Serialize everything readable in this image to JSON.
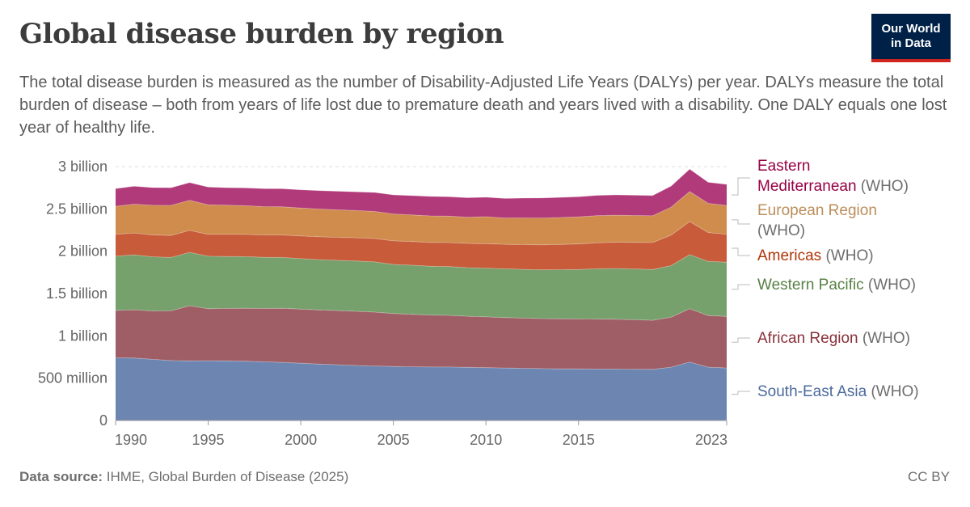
{
  "header": {
    "title": "Global disease burden by region",
    "subtitle": "The total disease burden is measured as the number of Disability-Adjusted Life Years (DALYs) per year. DALYs measure the total burden of disease – both from years of life lost due to premature death and years lived with a disability. One DALY equals one lost year of healthy life.",
    "logo_line1": "Our World",
    "logo_line2": "in Data"
  },
  "footer": {
    "source_label": "Data source:",
    "source_text": "IHME, Global Burden of Disease (2025)",
    "license": "CC BY"
  },
  "chart_data": {
    "type": "area",
    "stacked": true,
    "title": "Global disease burden by region",
    "xlim": [
      1990,
      2023
    ],
    "ylim": [
      0,
      3000000000
    ],
    "x_ticks": [
      1990,
      1995,
      2000,
      2005,
      2010,
      2015,
      2023
    ],
    "x_tick_labels": [
      "1990",
      "1995",
      "2000",
      "2005",
      "2010",
      "2015",
      "2023"
    ],
    "y_ticks": [
      0,
      500000000,
      1000000000,
      1500000000,
      2000000000,
      2500000000,
      3000000000
    ],
    "y_tick_labels": [
      "0",
      "500 million",
      "1 billion",
      "1.5 billion",
      "2 billion",
      "2.5 billion",
      "3 billion"
    ],
    "grid": "horizontal-dashed",
    "legend_position": "right",
    "x": [
      1990,
      1991,
      1992,
      1993,
      1994,
      1995,
      1996,
      1997,
      1998,
      1999,
      2000,
      2001,
      2002,
      2003,
      2004,
      2005,
      2006,
      2007,
      2008,
      2009,
      2010,
      2011,
      2012,
      2013,
      2014,
      2015,
      2016,
      2017,
      2018,
      2019,
      2020,
      2021,
      2022,
      2023
    ],
    "series": [
      {
        "name": "South-East Asia",
        "suffix": " (WHO)",
        "color": "#6d85b1",
        "label_color": "#4c6a9c",
        "values": [
          740000000,
          738000000,
          722000000,
          708000000,
          704000000,
          706000000,
          704000000,
          700000000,
          694000000,
          686000000,
          676000000,
          666000000,
          658000000,
          650000000,
          644000000,
          638000000,
          634000000,
          632000000,
          632000000,
          628000000,
          624000000,
          620000000,
          616000000,
          612000000,
          610000000,
          610000000,
          608000000,
          608000000,
          606000000,
          604000000,
          630000000,
          690000000,
          630000000,
          620000000
        ]
      },
      {
        "name": "African Region",
        "suffix": " (WHO)",
        "color": "#9f5e66",
        "label_color": "#883039",
        "values": [
          560000000,
          570000000,
          572000000,
          588000000,
          652000000,
          614000000,
          620000000,
          626000000,
          630000000,
          640000000,
          640000000,
          640000000,
          640000000,
          640000000,
          636000000,
          626000000,
          620000000,
          614000000,
          610000000,
          604000000,
          600000000,
          596000000,
          594000000,
          592000000,
          592000000,
          590000000,
          590000000,
          588000000,
          584000000,
          580000000,
          590000000,
          630000000,
          610000000,
          610000000
        ]
      },
      {
        "name": "Western Pacific",
        "suffix": " (WHO)",
        "color": "#76a06c",
        "label_color": "#578145",
        "values": [
          640000000,
          650000000,
          640000000,
          630000000,
          630000000,
          620000000,
          614000000,
          610000000,
          604000000,
          600000000,
          596000000,
          594000000,
          594000000,
          594000000,
          594000000,
          580000000,
          580000000,
          576000000,
          576000000,
          574000000,
          576000000,
          576000000,
          576000000,
          576000000,
          580000000,
          584000000,
          594000000,
          600000000,
          600000000,
          600000000,
          610000000,
          640000000,
          640000000,
          640000000
        ]
      },
      {
        "name": "Americas",
        "suffix": " (WHO)",
        "color": "#c75b3a",
        "label_color": "#b13507",
        "values": [
          260000000,
          258000000,
          258000000,
          260000000,
          260000000,
          258000000,
          260000000,
          262000000,
          264000000,
          266000000,
          268000000,
          270000000,
          272000000,
          274000000,
          276000000,
          278000000,
          280000000,
          282000000,
          284000000,
          286000000,
          288000000,
          290000000,
          292000000,
          294000000,
          298000000,
          302000000,
          306000000,
          310000000,
          314000000,
          318000000,
          360000000,
          390000000,
          340000000,
          330000000
        ]
      },
      {
        "name": "European Region",
        "suffix": " (WHO)",
        "color": "#cf8c4c",
        "label_color": "#bc8e5a",
        "values": [
          330000000,
          340000000,
          350000000,
          355000000,
          355000000,
          350000000,
          345000000,
          340000000,
          335000000,
          332000000,
          330000000,
          328000000,
          325000000,
          322000000,
          320000000,
          318000000,
          315000000,
          313000000,
          312000000,
          310000000,
          320000000,
          310000000,
          315000000,
          318000000,
          318000000,
          320000000,
          322000000,
          320000000,
          318000000,
          316000000,
          330000000,
          355000000,
          345000000,
          340000000
        ]
      },
      {
        "name": "Eastern\nMediterranean",
        "suffix": " (WHO)",
        "color": "#b13b7a",
        "label_color": "#970046",
        "values": [
          210000000,
          212000000,
          210000000,
          210000000,
          210000000,
          210000000,
          208000000,
          210000000,
          212000000,
          214000000,
          216000000,
          218000000,
          220000000,
          222000000,
          224000000,
          226000000,
          228000000,
          230000000,
          230000000,
          230000000,
          230000000,
          232000000,
          234000000,
          236000000,
          238000000,
          238000000,
          240000000,
          240000000,
          240000000,
          240000000,
          250000000,
          265000000,
          250000000,
          250000000
        ]
      }
    ]
  }
}
